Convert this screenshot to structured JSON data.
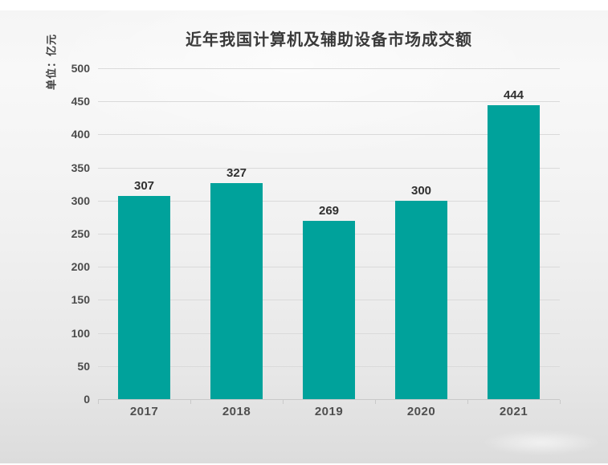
{
  "chart_data": {
    "type": "bar",
    "title": "近年我国计算机及辅助设备市场成交额",
    "unit_label": "单位：亿元",
    "categories": [
      "2017",
      "2018",
      "2019",
      "2020",
      "2021"
    ],
    "values": [
      307,
      327,
      269,
      300,
      444
    ],
    "ylim": [
      0,
      500
    ],
    "ytick_interval": 50,
    "yticks": [
      0,
      50,
      100,
      150,
      200,
      250,
      300,
      350,
      400,
      450,
      500
    ],
    "grid": true,
    "legend": false,
    "bar_color": "#00a29b"
  },
  "colors": {
    "title_text": "#3a3a3a",
    "tick_text": "#4b4b4b",
    "value_text": "#303030",
    "gridline": "#dadada",
    "axis_line": "#c9c9c9",
    "background_top": "#f5f5f5",
    "background_bottom": "#dcdcdc"
  }
}
